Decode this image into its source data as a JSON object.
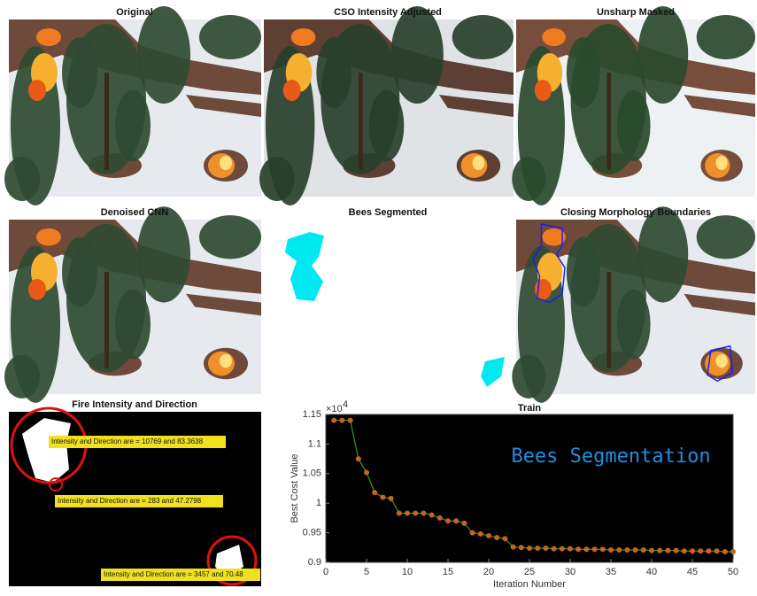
{
  "panels": [
    {
      "title": "Original"
    },
    {
      "title": "CSO Intensity Adjusted"
    },
    {
      "title": "Unsharp Masked"
    },
    {
      "title": "Denoised CNN"
    },
    {
      "title": "Bees Segmented"
    },
    {
      "title": "Closing Morphology Boundaries"
    },
    {
      "title": "Fire Intensity and Direction",
      "annotations": [
        "Intensity and Direction are = 10769 and 83.3638",
        "Intensity and Direction are = 283 and 47.2798",
        "Intensity and Direction are = 3457 and 70.48"
      ]
    }
  ],
  "chart_data": {
    "type": "line",
    "title": "Train",
    "annotation": "Bees Segmentation",
    "x_label": "Iteration Number",
    "y_label": "Best Cost Value",
    "y_multiplier_base": "×10",
    "y_multiplier_exponent": "4",
    "x": [
      1,
      2,
      3,
      4,
      5,
      6,
      7,
      8,
      9,
      10,
      11,
      12,
      13,
      14,
      15,
      16,
      17,
      18,
      19,
      20,
      21,
      22,
      23,
      24,
      25,
      26,
      27,
      28,
      29,
      30,
      31,
      32,
      33,
      34,
      35,
      36,
      37,
      38,
      39,
      40,
      41,
      42,
      43,
      44,
      45,
      46,
      47,
      48,
      49,
      50
    ],
    "series": [
      {
        "color": "#2e9b2e",
        "marker_color": "#c8641e",
        "values": [
          1.14,
          1.14,
          1.14,
          1.075,
          1.052,
          1.018,
          1.01,
          1.008,
          0.983,
          0.983,
          0.983,
          0.983,
          0.98,
          0.975,
          0.97,
          0.97,
          0.966,
          0.95,
          0.948,
          0.945,
          0.942,
          0.94,
          0.926,
          0.925,
          0.924,
          0.924,
          0.924,
          0.923,
          0.923,
          0.923,
          0.922,
          0.922,
          0.922,
          0.922,
          0.921,
          0.921,
          0.921,
          0.921,
          0.921,
          0.92,
          0.92,
          0.92,
          0.92,
          0.919,
          0.919,
          0.919,
          0.919,
          0.919,
          0.918,
          0.918
        ]
      }
    ],
    "xlim": [
      0,
      50
    ],
    "ylim": [
      0.9,
      1.15
    ],
    "xticks": [
      0,
      5,
      10,
      15,
      20,
      25,
      30,
      35,
      40,
      45,
      50
    ],
    "yticks": [
      0.9,
      0.95,
      1,
      1.05,
      1.1,
      1.15
    ]
  }
}
